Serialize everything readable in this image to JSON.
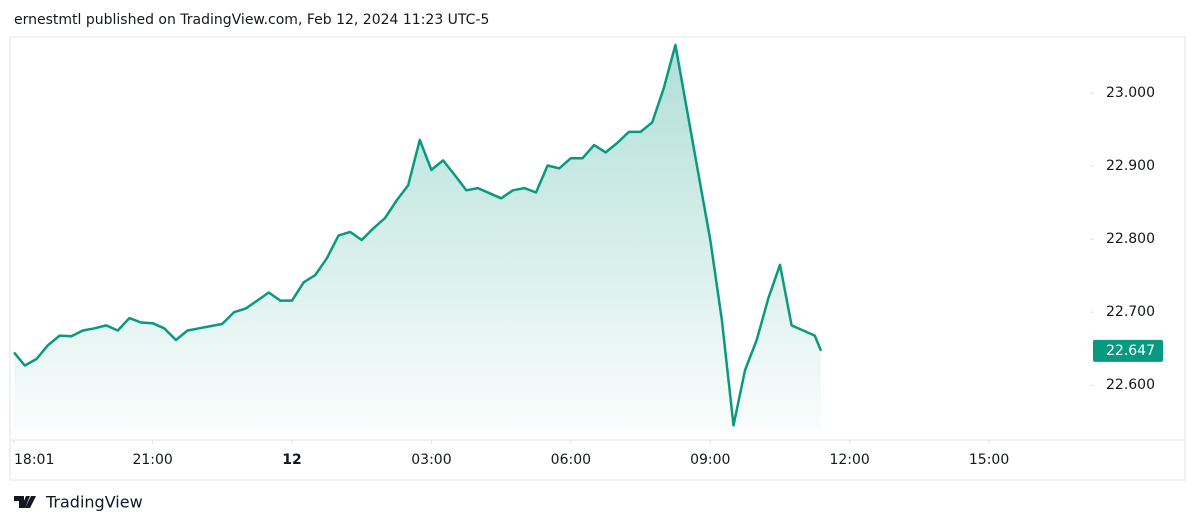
{
  "chart_data": {
    "type": "area",
    "title": "ernestmtl published on TradingView.com, Feb 12, 2024 11:23 UTC-5",
    "color": "#089981",
    "x": [
      "2024-02-11T18:01",
      "2024-02-11T18:15",
      "2024-02-11T18:30",
      "2024-02-11T18:45",
      "2024-02-11T19:00",
      "2024-02-11T19:15",
      "2024-02-11T19:30",
      "2024-02-11T19:45",
      "2024-02-11T20:00",
      "2024-02-11T20:15",
      "2024-02-11T20:30",
      "2024-02-11T20:45",
      "2024-02-11T21:00",
      "2024-02-11T21:15",
      "2024-02-11T21:30",
      "2024-02-11T21:45",
      "2024-02-11T22:00",
      "2024-02-11T22:15",
      "2024-02-11T22:30",
      "2024-02-11T22:45",
      "2024-02-11T23:00",
      "2024-02-11T23:15",
      "2024-02-11T23:30",
      "2024-02-11T23:45",
      "2024-02-12T00:00",
      "2024-02-12T00:15",
      "2024-02-12T00:30",
      "2024-02-12T00:45",
      "2024-02-12T01:00",
      "2024-02-12T01:15",
      "2024-02-12T01:30",
      "2024-02-12T01:45",
      "2024-02-12T02:00",
      "2024-02-12T02:15",
      "2024-02-12T02:30",
      "2024-02-12T02:45",
      "2024-02-12T03:00",
      "2024-02-12T03:15",
      "2024-02-12T03:30",
      "2024-02-12T03:45",
      "2024-02-12T04:00",
      "2024-02-12T04:15",
      "2024-02-12T04:30",
      "2024-02-12T04:45",
      "2024-02-12T05:00",
      "2024-02-12T05:15",
      "2024-02-12T05:30",
      "2024-02-12T05:45",
      "2024-02-12T06:00",
      "2024-02-12T06:15",
      "2024-02-12T06:30",
      "2024-02-12T06:45",
      "2024-02-12T07:00",
      "2024-02-12T07:15",
      "2024-02-12T07:30",
      "2024-02-12T07:45",
      "2024-02-12T08:00",
      "2024-02-12T08:15",
      "2024-02-12T08:30",
      "2024-02-12T08:45",
      "2024-02-12T09:00",
      "2024-02-12T09:15",
      "2024-02-12T09:30",
      "2024-02-12T09:45",
      "2024-02-12T10:00",
      "2024-02-12T10:15",
      "2024-02-12T10:30",
      "2024-02-12T10:45",
      "2024-02-12T11:00",
      "2024-02-12T11:15",
      "2024-02-12T11:23"
    ],
    "values": [
      22.645,
      22.627,
      22.636,
      22.655,
      22.668,
      22.667,
      22.675,
      22.678,
      22.682,
      22.675,
      22.692,
      22.686,
      22.685,
      22.678,
      22.662,
      22.675,
      22.678,
      22.681,
      22.684,
      22.7,
      22.705,
      22.716,
      22.727,
      22.716,
      22.716,
      22.741,
      22.751,
      22.774,
      22.805,
      22.81,
      22.799,
      22.815,
      22.829,
      22.853,
      22.874,
      22.936,
      22.895,
      22.908,
      22.888,
      22.867,
      22.87,
      22.863,
      22.856,
      22.867,
      22.87,
      22.864,
      22.901,
      22.897,
      22.911,
      22.911,
      22.929,
      22.919,
      22.932,
      22.947,
      22.947,
      22.96,
      23.007,
      23.066,
      22.977,
      22.888,
      22.799,
      22.689,
      22.545,
      22.621,
      22.662,
      22.719,
      22.765,
      22.682,
      22.675,
      22.668,
      22.647
    ],
    "xlim": [
      "2024-02-11T18:01",
      "2024-02-12T17:00"
    ],
    "xticks": [
      {
        "value": "2024-02-11T18:01",
        "label": "18:01"
      },
      {
        "value": "2024-02-11T21:00",
        "label": "21:00"
      },
      {
        "value": "2024-02-12T00:00",
        "label": "12"
      },
      {
        "value": "2024-02-12T03:00",
        "label": "03:00"
      },
      {
        "value": "2024-02-12T06:00",
        "label": "06:00"
      },
      {
        "value": "2024-02-12T09:00",
        "label": "09:00"
      },
      {
        "value": "2024-02-12T12:00",
        "label": "12:00"
      },
      {
        "value": "2024-02-12T15:00",
        "label": "15:00"
      }
    ],
    "ylim": [
      22.525,
      23.077
    ],
    "yticks": [
      {
        "value": 22.6,
        "label": "22.600"
      },
      {
        "value": 22.7,
        "label": "22.700"
      },
      {
        "value": 22.8,
        "label": "22.800"
      },
      {
        "value": 22.9,
        "label": "22.900"
      },
      {
        "value": 23,
        "label": "23.000"
      }
    ],
    "grid": false
  },
  "footer": {
    "brand": "TradingView"
  }
}
